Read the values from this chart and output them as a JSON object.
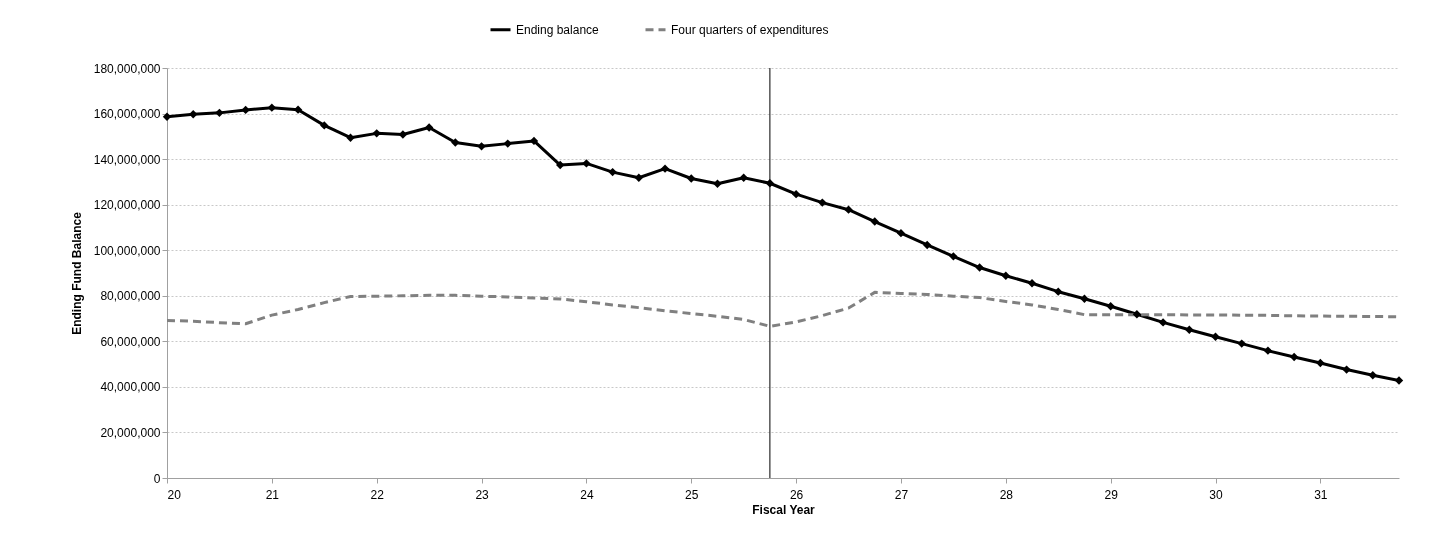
{
  "chart_data": {
    "type": "line",
    "xlabel": "Fiscal Year",
    "ylabel": "Ending Fund Balance",
    "x": [
      20,
      20.25,
      20.5,
      20.75,
      21,
      21.25,
      21.5,
      21.75,
      22,
      22.25,
      22.5,
      22.75,
      23,
      23.25,
      23.5,
      23.75,
      24,
      24.25,
      24.5,
      24.75,
      25,
      25.25,
      25.5,
      25.75,
      26,
      26.25,
      26.5,
      26.75,
      27,
      27.25,
      27.5,
      27.75,
      28,
      28.25,
      28.5,
      28.75,
      29,
      29.25,
      29.5,
      29.75,
      30,
      30.25,
      30.5,
      30.75,
      31,
      31.25,
      31.5,
      31.75
    ],
    "series": [
      {
        "name": "Ending balance",
        "color": "#000000",
        "marker": "diamond",
        "line_style": "solid",
        "values": [
          158600000,
          159700000,
          160300000,
          161600000,
          162600000,
          161700000,
          154800000,
          149400000,
          151300000,
          150800000,
          153900000,
          147300000,
          145600000,
          146800000,
          148000000,
          137400000,
          138100000,
          134300000,
          131800000,
          135800000,
          131500000,
          129200000,
          131800000,
          129400000,
          124600000,
          120900000,
          117800000,
          112600000,
          107500000,
          102300000,
          97300000,
          92400000,
          88800000,
          85500000,
          81800000,
          78700000,
          75400000,
          71900000,
          68300000,
          65100000,
          62000000,
          59000000,
          55900000,
          53100000,
          50500000,
          47600000,
          45100000,
          42800000
        ]
      },
      {
        "name": "Four quarters of expenditures",
        "color": "#808080",
        "marker": "none",
        "line_style": "dashed",
        "values": [
          69200000,
          68800000,
          68200000,
          67700000,
          71500000,
          74000000,
          77000000,
          79700000,
          79800000,
          80000000,
          80200000,
          80200000,
          79800000,
          79500000,
          79000000,
          78600000,
          77400000,
          76000000,
          74800000,
          73400000,
          72200000,
          71000000,
          69600000,
          66600000,
          68500000,
          71300000,
          74600000,
          81500000,
          81000000,
          80600000,
          79800000,
          79200000,
          77500000,
          76000000,
          74000000,
          71700000,
          71700000,
          71700000,
          71700000,
          71600000,
          71600000,
          71500000,
          71400000,
          71200000,
          71100000,
          71000000,
          70900000,
          70800000
        ]
      }
    ],
    "xlim": [
      20,
      31.75
    ],
    "xticks": [
      20,
      21,
      22,
      23,
      24,
      25,
      26,
      27,
      28,
      29,
      30,
      31
    ],
    "ylim": [
      0,
      180000000
    ],
    "yticks": [
      0,
      {
        "value": 20000000,
        "label": "20,000,000"
      },
      {
        "value": 40000000,
        "label": "40,000,000"
      },
      {
        "value": 60000000,
        "label": "60,000,000"
      },
      {
        "value": 80000000,
        "label": "80,000,000"
      },
      {
        "value": 100000000,
        "label": "100,000,000"
      },
      {
        "value": 120000000,
        "label": "120,000,000"
      },
      {
        "value": 140000000,
        "label": "140,000,000"
      },
      {
        "value": 160000000,
        "label": "160,000,000"
      },
      {
        "value": 180000000,
        "label": "180,000,000"
      }
    ],
    "grid": "y",
    "legend": "top",
    "ref_lines": [
      {
        "axis": "x",
        "value": 25.75,
        "color": "#000000"
      }
    ]
  }
}
